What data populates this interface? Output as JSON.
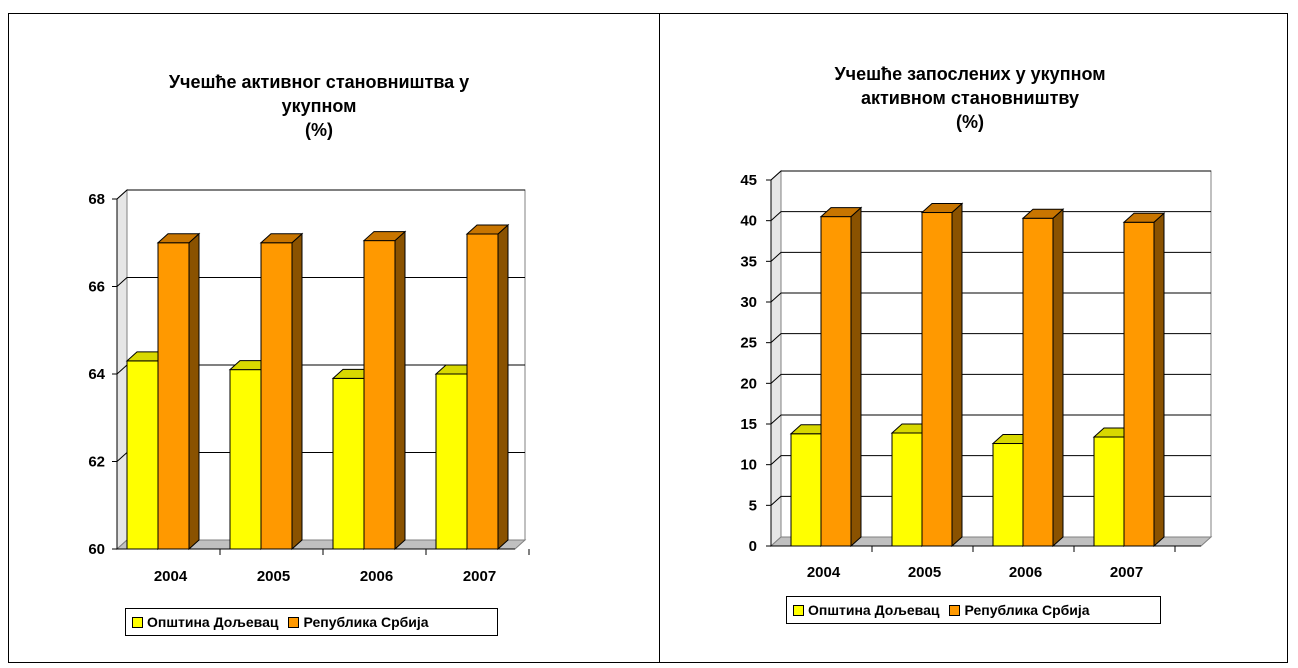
{
  "chart_data": [
    {
      "type": "bar",
      "title": "Учешће активног становништва у\nукупном\n(%)",
      "categories": [
        "2004",
        "2005",
        "2006",
        "2007"
      ],
      "series": [
        {
          "name": "Општина Дољевац",
          "values": [
            64.3,
            64.1,
            63.9,
            64.0
          ],
          "color": "#ffff00",
          "side": "#b5b500",
          "top": "#d8d800"
        },
        {
          "name": "Република Србија",
          "values": [
            67.0,
            67.0,
            67.05,
            67.2
          ],
          "color": "#ff9900",
          "side": "#8a5200",
          "top": "#c87500"
        }
      ],
      "yticks": [
        "60",
        "62",
        "64",
        "66",
        "68"
      ],
      "ylim": [
        60,
        68
      ],
      "grid": true,
      "legend": "bottom"
    },
    {
      "type": "bar",
      "title": "Учешће запослених у укупном\nактивном становништву\n(%)",
      "categories": [
        "2004",
        "2005",
        "2006",
        "2007"
      ],
      "series": [
        {
          "name": "Општина Дољевац",
          "values": [
            13.8,
            13.9,
            12.6,
            13.4
          ],
          "color": "#ffff00",
          "side": "#b5b500",
          "top": "#d8d800"
        },
        {
          "name": "Република Србија",
          "values": [
            40.5,
            41.0,
            40.3,
            39.8
          ],
          "color": "#ff9900",
          "side": "#8a5200",
          "top": "#c87500"
        }
      ],
      "yticks": [
        "0",
        "5",
        "10",
        "15",
        "20",
        "25",
        "30",
        "35",
        "40",
        "45"
      ],
      "ylim": [
        0,
        45
      ],
      "grid": true,
      "legend": "bottom"
    }
  ]
}
